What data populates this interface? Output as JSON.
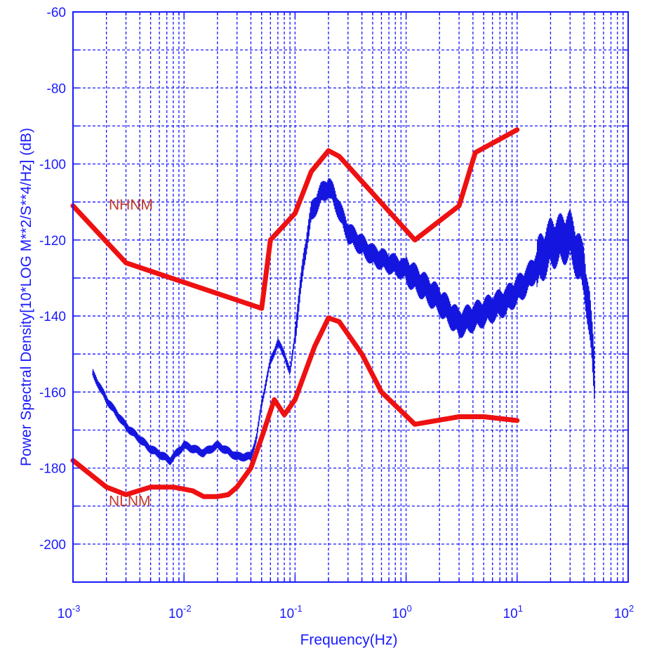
{
  "chart_data": {
    "type": "line",
    "title": "",
    "xlabel": "Frequency(Hz)",
    "ylabel": "Power Spectral Density[10*LOG M**2/S**4/Hz] (dB)",
    "x_scale": "log",
    "xlim": [
      0.001,
      100
    ],
    "ylim": [
      -210,
      -60
    ],
    "grid": true,
    "legend": "none",
    "x_ticks": [
      {
        "base": "10",
        "exp": "-3",
        "value": 0.001
      },
      {
        "base": "10",
        "exp": "-2",
        "value": 0.01
      },
      {
        "base": "10",
        "exp": "-1",
        "value": 0.1
      },
      {
        "base": "10",
        "exp": "0",
        "value": 1
      },
      {
        "base": "10",
        "exp": "1",
        "value": 10
      },
      {
        "base": "10",
        "exp": "2",
        "value": 100
      }
    ],
    "y_ticks": [
      -60,
      -80,
      -100,
      -120,
      -140,
      -160,
      -180,
      -200
    ],
    "annotations": [
      {
        "text": "NHNM",
        "x": 0.0021,
        "y": -112
      },
      {
        "text": "NLNM",
        "x": 0.0021,
        "y": -190
      }
    ],
    "colors": {
      "frame": "#1a1aff",
      "grid": "#1a1aff",
      "model": "#ee1111",
      "psd": "#1515e0",
      "annotation": "#c0392b"
    },
    "series": [
      {
        "color": "#ee1111",
        "x": [
          0.001,
          0.003,
          0.05,
          0.06,
          0.1,
          0.14,
          0.2,
          0.25,
          1.2,
          3,
          4.2,
          10
        ],
        "y": [
          -111,
          -126,
          -138,
          -120,
          -113,
          -102,
          -96.5,
          -98,
          -120,
          -111,
          -97,
          -91
        ]
      },
      {
        "color": "#ee1111",
        "x": [
          0.001,
          0.002,
          0.003,
          0.005,
          0.008,
          0.012,
          0.015,
          0.02,
          0.025,
          0.03,
          0.04,
          0.05,
          0.065,
          0.08,
          0.1,
          0.15,
          0.2,
          0.25,
          0.4,
          0.6,
          1.2,
          3,
          5,
          10
        ],
        "y": [
          -178,
          -185,
          -187,
          -185,
          -185,
          -186,
          -187.5,
          -187.5,
          -187,
          -185,
          -180,
          -172,
          -162,
          -166,
          -162,
          -148,
          -140.5,
          -141.5,
          -150,
          -160,
          -168.5,
          -166.5,
          -166.5,
          -167.5
        ]
      },
      {
        "color": "#1515e0",
        "x": [
          0.0015,
          0.002,
          0.003,
          0.005,
          0.0075,
          0.01,
          0.015,
          0.02,
          0.03,
          0.04,
          0.045,
          0.05,
          0.06,
          0.07,
          0.08,
          0.09,
          0.1,
          0.12,
          0.14,
          0.17,
          0.2,
          0.22,
          0.3,
          0.5,
          1,
          2,
          3,
          5,
          8,
          12,
          20,
          30,
          40,
          45,
          50
        ],
        "y": [
          -155,
          -162,
          -169,
          -175,
          -178,
          -174,
          -176,
          -174,
          -177,
          -177,
          -172,
          -163,
          -152,
          -147,
          -150,
          -155,
          -145,
          -125,
          -113,
          -108,
          -106,
          -108,
          -118,
          -124,
          -128,
          -136,
          -142,
          -139,
          -136,
          -131,
          -121,
          -119,
          -128,
          -140,
          -157
        ]
      }
    ]
  }
}
